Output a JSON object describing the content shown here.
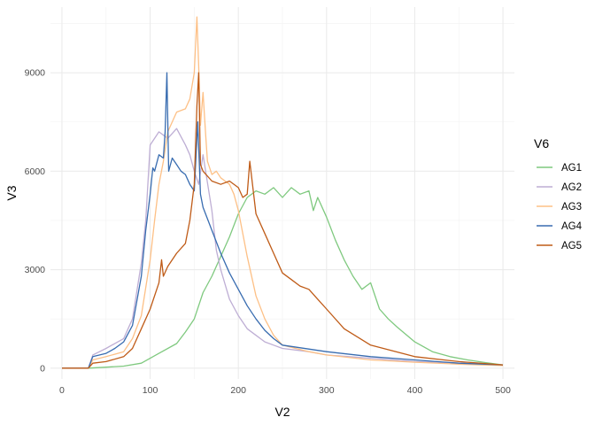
{
  "chart_data": {
    "type": "line",
    "xlabel": "V2",
    "ylabel": "V3",
    "legend_title": "V6",
    "legend_position": "right",
    "grid": true,
    "xlim": [
      -13,
      513
    ],
    "ylim": [
      -330,
      11000
    ],
    "x_ticks": [
      0,
      100,
      200,
      300,
      400,
      500
    ],
    "y_ticks": [
      0,
      3000,
      6000,
      9000
    ],
    "x_tick_labels": [
      "0",
      "100",
      "200",
      "300",
      "400",
      "500"
    ],
    "y_tick_labels": [
      "0",
      "3000",
      "6000",
      "9000"
    ],
    "series": [
      {
        "name": "AG1",
        "color": "#7fc97f",
        "x": [
          0,
          30,
          50,
          70,
          90,
          110,
          130,
          140,
          150,
          160,
          170,
          180,
          190,
          200,
          210,
          220,
          230,
          240,
          250,
          260,
          270,
          280,
          285,
          290,
          300,
          310,
          320,
          330,
          340,
          350,
          360,
          370,
          380,
          400,
          420,
          440,
          460,
          480,
          500
        ],
        "y": [
          0,
          0,
          30,
          60,
          150,
          450,
          750,
          1100,
          1500,
          2300,
          2800,
          3400,
          4000,
          4700,
          5200,
          5400,
          5300,
          5500,
          5200,
          5500,
          5300,
          5400,
          4800,
          5200,
          4600,
          3900,
          3300,
          2800,
          2400,
          2600,
          1800,
          1500,
          1250,
          800,
          500,
          350,
          250,
          170,
          100
        ]
      },
      {
        "name": "AG2",
        "color": "#beaed4",
        "x": [
          0,
          30,
          35,
          50,
          70,
          80,
          90,
          95,
          100,
          105,
          110,
          120,
          130,
          140,
          145,
          150,
          155,
          160,
          170,
          175,
          180,
          190,
          200,
          210,
          220,
          230,
          240,
          250,
          280,
          300,
          350,
          400,
          450,
          500
        ],
        "y": [
          0,
          0,
          400,
          600,
          900,
          1500,
          3200,
          4500,
          6800,
          7000,
          7200,
          7000,
          7300,
          6800,
          6500,
          6000,
          5600,
          6500,
          4800,
          3600,
          3000,
          2100,
          1600,
          1200,
          1000,
          800,
          700,
          600,
          500,
          400,
          300,
          200,
          150,
          100
        ]
      },
      {
        "name": "AG3",
        "color": "#fdc086",
        "x": [
          0,
          30,
          35,
          50,
          70,
          80,
          90,
          100,
          105,
          110,
          115,
          120,
          130,
          140,
          145,
          150,
          153,
          155,
          157,
          160,
          163,
          165,
          170,
          175,
          180,
          190,
          195,
          200,
          210,
          220,
          230,
          240,
          250,
          280,
          300,
          350,
          400,
          450,
          500
        ],
        "y": [
          0,
          0,
          250,
          350,
          500,
          900,
          1600,
          3300,
          4500,
          5600,
          6300,
          7200,
          7800,
          7900,
          8200,
          9000,
          10700,
          9200,
          7400,
          8400,
          7100,
          6300,
          5900,
          6000,
          5800,
          5600,
          5300,
          4800,
          3400,
          2200,
          1500,
          1000,
          700,
          500,
          400,
          250,
          180,
          120,
          80
        ]
      },
      {
        "name": "AG4",
        "color": "#386cb0",
        "x": [
          0,
          30,
          35,
          50,
          60,
          70,
          80,
          90,
          95,
          100,
          103,
          105,
          110,
          115,
          117,
          119,
          121,
          125,
          130,
          135,
          140,
          145,
          150,
          154,
          157,
          160,
          170,
          180,
          190,
          200,
          210,
          220,
          230,
          240,
          250,
          300,
          350,
          400,
          450,
          500
        ],
        "y": [
          0,
          0,
          350,
          450,
          600,
          800,
          1300,
          2800,
          4200,
          5300,
          6100,
          6000,
          6500,
          6400,
          7200,
          9000,
          6000,
          6400,
          6200,
          6000,
          5900,
          5600,
          5400,
          7500,
          5300,
          4900,
          4200,
          3500,
          2900,
          2400,
          1900,
          1500,
          1150,
          900,
          700,
          500,
          350,
          250,
          150,
          100
        ]
      },
      {
        "name": "AG5",
        "color": "#bf5b17",
        "x": [
          0,
          30,
          35,
          50,
          70,
          80,
          90,
          100,
          110,
          113,
          115,
          120,
          130,
          140,
          145,
          150,
          153,
          155,
          157,
          160,
          170,
          180,
          190,
          200,
          205,
          210,
          213,
          220,
          230,
          240,
          250,
          260,
          270,
          280,
          290,
          300,
          320,
          350,
          400,
          450,
          500
        ],
        "y": [
          0,
          0,
          150,
          200,
          350,
          600,
          1200,
          1800,
          2600,
          3300,
          2800,
          3100,
          3500,
          3800,
          4500,
          5600,
          8000,
          9000,
          6200,
          6000,
          5700,
          5600,
          5700,
          5500,
          5200,
          5300,
          6300,
          4700,
          4100,
          3500,
          2900,
          2700,
          2500,
          2400,
          2100,
          1800,
          1200,
          700,
          350,
          200,
          100
        ]
      }
    ]
  }
}
